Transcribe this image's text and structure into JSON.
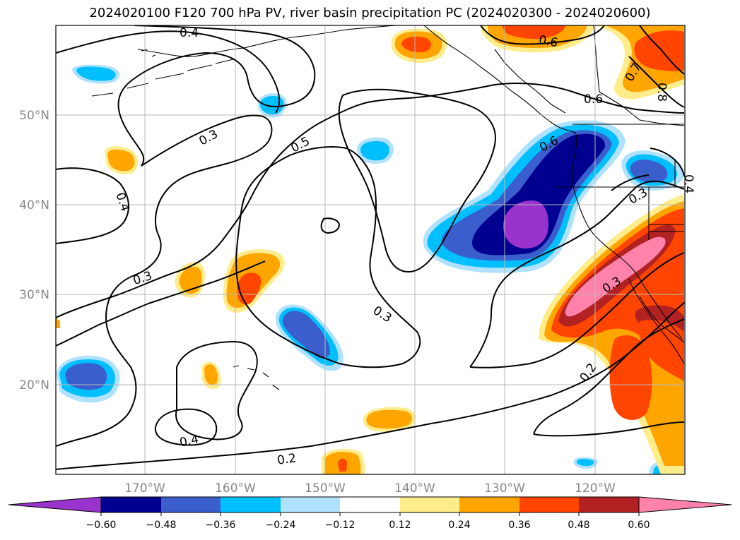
{
  "title": "2024020100 F120 700 hPa PV, river basin precipitation PC (2024020300 - 2024020600)",
  "lon_labels": [
    "170°W",
    "160°W",
    "150°W",
    "140°W",
    "130°W",
    "120°W"
  ],
  "lat_labels": [
    "50°N",
    "40°N",
    "30°N",
    "20°N"
  ],
  "contour_labels": [
    "0.4",
    "0.3",
    "0.5",
    "0.6",
    "0.6",
    "0.7",
    "0.8",
    "0.6",
    "0.4",
    "0.3",
    "0.3",
    "0.3",
    "0.2",
    "0.4",
    "0.2",
    "0.3",
    "0.4"
  ],
  "colorbar": {
    "colors": [
      "#9933cc",
      "#000090",
      "#3a5fcd",
      "#00bfff",
      "#b0e2ff",
      "#ffffff",
      "#ffec8b",
      "#ffa500",
      "#ff4500",
      "#b22222",
      "#ff82ab"
    ],
    "tick_labels": [
      "−0.60",
      "−0.48",
      "−0.36",
      "−0.24",
      "−0.12",
      "0.12",
      "0.24",
      "0.36",
      "0.48",
      "0.60"
    ]
  }
}
